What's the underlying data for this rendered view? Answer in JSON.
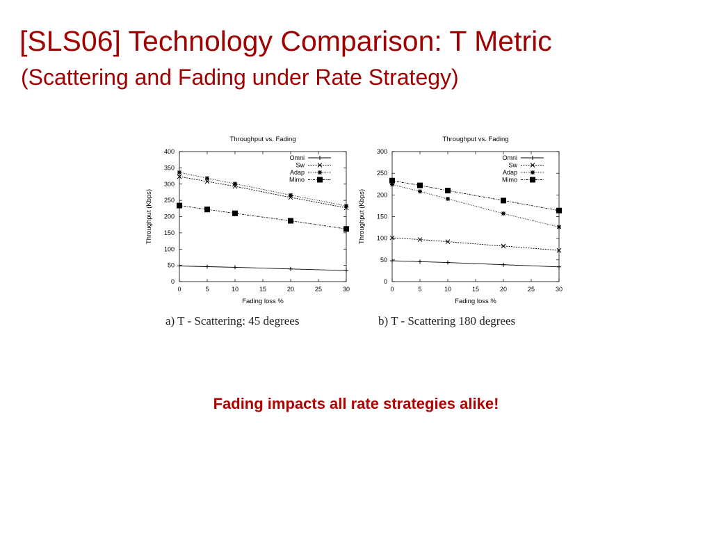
{
  "slide": {
    "title": "[SLS06] Technology Comparison: T Metric",
    "subtitle": "(Scattering and Fading under Rate Strategy)",
    "conclusion": "Fading impacts all rate strategies alike!"
  },
  "colors": {
    "title": "#a00000",
    "conclusion": "#b00000",
    "series": "#000000"
  },
  "chart_data": [
    {
      "type": "line",
      "title": "Throughput vs. Fading",
      "xlabel": "Fading loss %",
      "ylabel": "Throughput (Kbps)",
      "caption": "a) T - Scattering: 45 degrees",
      "xlim": [
        0,
        30
      ],
      "ylim": [
        0,
        400
      ],
      "xticks": [
        0,
        5,
        10,
        15,
        20,
        25,
        30
      ],
      "yticks": [
        0,
        50,
        100,
        150,
        200,
        250,
        300,
        350,
        400
      ],
      "x": [
        0,
        5,
        10,
        20,
        30
      ],
      "legend_position": "top-right",
      "grid": false,
      "series": [
        {
          "name": "Omni",
          "marker": "plus",
          "values": [
            48,
            46,
            44,
            39,
            34
          ]
        },
        {
          "name": "Sw",
          "marker": "x",
          "values": [
            323,
            308,
            293,
            259,
            227
          ]
        },
        {
          "name": "Adap",
          "marker": "star",
          "values": [
            336,
            318,
            301,
            266,
            233
          ]
        },
        {
          "name": "Mimo",
          "marker": "square",
          "values": [
            234,
            222,
            210,
            187,
            162
          ]
        }
      ]
    },
    {
      "type": "line",
      "title": "Throughput vs. Fading",
      "xlabel": "Fading loss %",
      "ylabel": "Throughput (Kbps)",
      "caption": "b) T - Scattering 180 degrees",
      "xlim": [
        0,
        30
      ],
      "ylim": [
        0,
        300
      ],
      "xticks": [
        0,
        5,
        10,
        15,
        20,
        25,
        30
      ],
      "yticks": [
        0,
        50,
        100,
        150,
        200,
        250,
        300
      ],
      "x": [
        0,
        5,
        10,
        20,
        30
      ],
      "legend_position": "top-right",
      "grid": false,
      "series": [
        {
          "name": "Omni",
          "marker": "plus",
          "values": [
            48,
            46,
            44,
            39,
            34
          ]
        },
        {
          "name": "Sw",
          "marker": "x",
          "values": [
            101,
            97,
            92,
            82,
            72
          ]
        },
        {
          "name": "Adap",
          "marker": "star",
          "values": [
            224,
            208,
            191,
            157,
            126
          ]
        },
        {
          "name": "Mimo",
          "marker": "square",
          "values": [
            233,
            222,
            210,
            187,
            164
          ]
        }
      ]
    }
  ]
}
